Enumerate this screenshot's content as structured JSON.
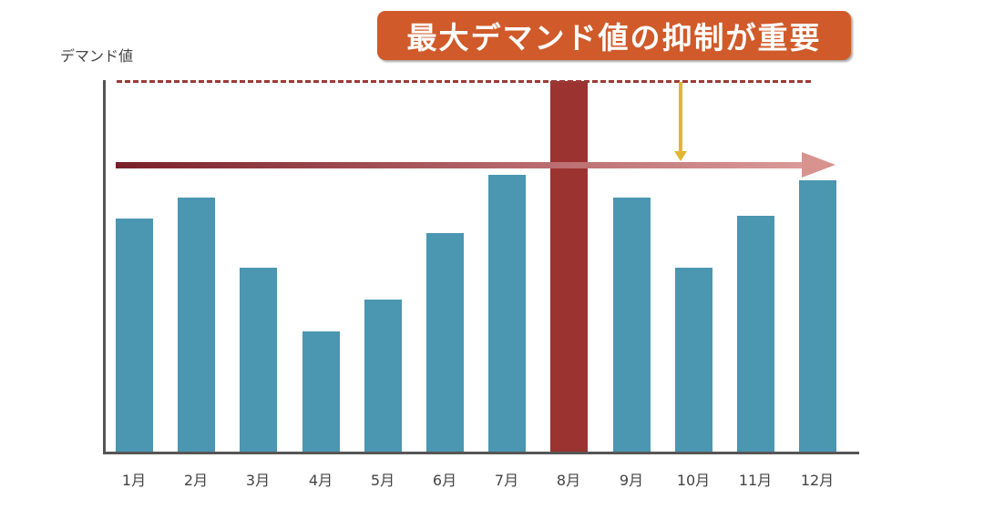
{
  "title": "最大デマンド値の抑制が重要",
  "colors": {
    "bar": "#4b96b0",
    "peak_bar": "#9b3330",
    "title_bg": "#d05a2a",
    "max_line": "#9b3a36",
    "trend_start": "#7a1f2a",
    "trend_end": "#da9a98",
    "down_arrow": "#e0b633"
  },
  "chart_data": {
    "type": "bar",
    "title": "最大デマンド値の抑制が重要",
    "xlabel": "",
    "ylabel": "デマンド値",
    "categories": [
      "1月",
      "2月",
      "3月",
      "4月",
      "5月",
      "6月",
      "7月",
      "8月",
      "9月",
      "10月",
      "11月",
      "12月"
    ],
    "values": [
      256,
      279,
      202,
      132,
      167,
      240,
      304,
      407,
      279,
      202,
      259,
      298
    ],
    "value_units": "relative (pixel height, no numeric axis shown)",
    "highlight": {
      "category": "8月",
      "note": "maximum demand"
    },
    "annotations": [
      {
        "type": "dashed-line",
        "label": "max demand level",
        "y": 407
      },
      {
        "type": "arrow-right",
        "label": "trend / base level",
        "y": 315
      },
      {
        "type": "arrow-down",
        "from": 407,
        "to": 315,
        "label": "suppress peak"
      }
    ],
    "ylim": [
      0,
      410
    ],
    "grid": false,
    "legend": null
  }
}
